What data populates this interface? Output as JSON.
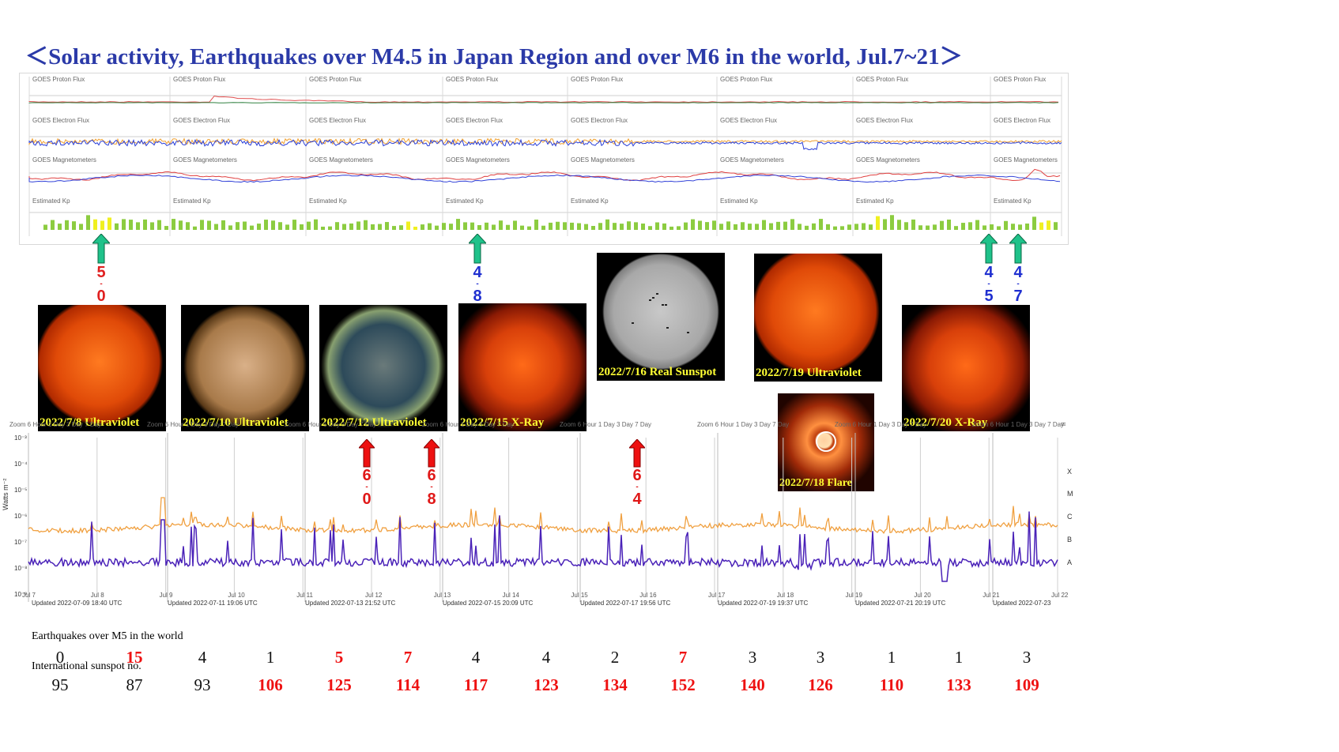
{
  "title": "＜Solar activity, Earthquakes over M4.5 in Japan Region and over M6 in the world,   Jul.7~21＞",
  "top_panel": {
    "green_arrows": [
      {
        "magnitude_digits": [
          "5",
          "0"
        ],
        "color": "#e02020"
      },
      {
        "magnitude_digits": [
          "4",
          "8"
        ],
        "color": "#1f2fd0"
      },
      {
        "magnitude_digits": [
          "4",
          "5"
        ],
        "color": "#1f2fd0"
      },
      {
        "magnitude_digits": [
          "4",
          "7"
        ],
        "color": "#1f2fd0"
      }
    ]
  },
  "photos": [
    {
      "caption": "2022/7/8 Ultraviolet",
      "style": "uv-red"
    },
    {
      "caption": "2022/7/10 Ultraviolet",
      "style": "uv-gold"
    },
    {
      "caption": "2022/7/12 Ultraviolet",
      "style": "uv-multi"
    },
    {
      "caption": "2022/7/15 X-Ray",
      "style": "xray"
    },
    {
      "caption": "2022/7/16 Real Sunspot",
      "style": "white"
    },
    {
      "caption": "2022/7/19 Ultraviolet",
      "style": "uv-red"
    },
    {
      "caption": "2022/7/18 Flare",
      "style": "corona"
    },
    {
      "caption": "2022/7/20 X-Ray",
      "style": "xray"
    }
  ],
  "goes_chart": {
    "zoom_label": "Zoom",
    "zoom_options": [
      "6 Hour",
      "1 Day",
      "3 Day",
      "7 Day"
    ],
    "y_axis_label": "Watts m⁻²",
    "y_ticks": [
      "10⁻³",
      "10⁻⁴",
      "10⁻⁵",
      "10⁻⁶",
      "10⁻⁷",
      "10⁻⁸",
      "10⁻⁹"
    ],
    "flare_classes": [
      "X",
      "M",
      "C",
      "B",
      "A"
    ],
    "x_ticks": [
      "Jul 7",
      "Jul 8",
      "Jul 9",
      "Jul 10",
      "Jul 11",
      "Jul 12",
      "Jul 13",
      "Jul 14",
      "Jul 15",
      "Jul 16",
      "Jul 17",
      "Jul 18",
      "Jul 19",
      "Jul 20",
      "Jul 21",
      "Jul 22"
    ],
    "updated_labels": [
      "Updated 2022-07-09 18:40 UTC",
      "Updated 2022-07-11 19:06 UTC",
      "Updated 2022-07-13 21:52 UTC",
      "Updated 2022-07-15 20:09 UTC",
      "Updated 2022-07-17 19:56 UTC",
      "Updated 2022-07-19 19:37 UTC",
      "Updated 2022-07-21 20:19 UTC",
      "Updated 2022-07-23"
    ],
    "red_arrows": [
      {
        "magnitude_digits": [
          "6",
          "0"
        ]
      },
      {
        "magnitude_digits": [
          "6",
          "8"
        ]
      },
      {
        "magnitude_digits": [
          "6",
          "4"
        ]
      }
    ]
  },
  "chart_data": {
    "type": "table",
    "earthquakes_label": "Earthquakes over M5 in the world",
    "sunspot_label": "International sunspot no.",
    "earthquakes": [
      {
        "value": "0",
        "highlight": false
      },
      {
        "value": "15",
        "highlight": true
      },
      {
        "value": "4",
        "highlight": false
      },
      {
        "value": "1",
        "highlight": false
      },
      {
        "value": "5",
        "highlight": true
      },
      {
        "value": "7",
        "highlight": true
      },
      {
        "value": "4",
        "highlight": false
      },
      {
        "value": "4",
        "highlight": false
      },
      {
        "value": "2",
        "highlight": false
      },
      {
        "value": "7",
        "highlight": true
      },
      {
        "value": "3",
        "highlight": false
      },
      {
        "value": "3",
        "highlight": false
      },
      {
        "value": "1",
        "highlight": false
      },
      {
        "value": "1",
        "highlight": false
      },
      {
        "value": "3",
        "highlight": false
      }
    ],
    "sunspots": [
      {
        "value": "95",
        "highlight": false
      },
      {
        "value": "87",
        "highlight": false
      },
      {
        "value": "93",
        "highlight": false
      },
      {
        "value": "106",
        "highlight": true
      },
      {
        "value": "125",
        "highlight": true
      },
      {
        "value": "114",
        "highlight": true
      },
      {
        "value": "117",
        "highlight": true
      },
      {
        "value": "123",
        "highlight": true
      },
      {
        "value": "134",
        "highlight": true
      },
      {
        "value": "152",
        "highlight": true
      },
      {
        "value": "140",
        "highlight": true
      },
      {
        "value": "126",
        "highlight": true
      },
      {
        "value": "110",
        "highlight": true
      },
      {
        "value": "133",
        "highlight": true
      },
      {
        "value": "109",
        "highlight": true
      }
    ]
  },
  "colors": {
    "title": "#2b3aa8",
    "red": "#e11111",
    "orange_trace": "#f0a040",
    "purple_trace": "#4a22b8",
    "green_arrow": "#1fc28a",
    "caption": "#ffff33"
  }
}
